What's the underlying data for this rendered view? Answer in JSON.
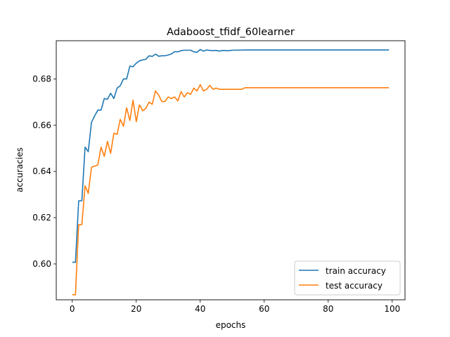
{
  "chart_data": {
    "type": "line",
    "title": "Adaboost_tfidf_60learner",
    "xlabel": "epochs",
    "ylabel": "accuracies",
    "xlim": [
      -5,
      104
    ],
    "ylim": [
      0.5845,
      0.6965
    ],
    "x_ticks": [
      0,
      20,
      40,
      60,
      80,
      100
    ],
    "y_ticks": [
      0.6,
      0.62,
      0.64,
      0.66,
      0.68
    ],
    "y_tick_labels": [
      "0.60",
      "0.62",
      "0.64",
      "0.66",
      "0.68"
    ],
    "grid": false,
    "legend_position": "lower-right",
    "series": [
      {
        "name": "train accuracy",
        "color": "#1f77b4",
        "x": [
          0,
          1,
          2,
          3,
          4,
          5,
          6,
          7,
          8,
          9,
          10,
          11,
          12,
          13,
          14,
          15,
          16,
          17,
          18,
          19,
          20,
          21,
          22,
          23,
          24,
          25,
          26,
          27,
          28,
          29,
          30,
          31,
          32,
          33,
          34,
          35,
          36,
          37,
          38,
          39,
          40,
          41,
          42,
          43,
          44,
          45,
          46,
          47,
          48,
          49,
          50,
          55,
          60,
          70,
          80,
          90,
          99
        ],
        "y": [
          0.6007,
          0.6007,
          0.6273,
          0.6273,
          0.6505,
          0.6485,
          0.6612,
          0.664,
          0.6665,
          0.6665,
          0.6715,
          0.6712,
          0.6738,
          0.6715,
          0.676,
          0.677,
          0.68,
          0.68,
          0.6855,
          0.6853,
          0.6868,
          0.6878,
          0.6882,
          0.6885,
          0.69,
          0.6897,
          0.6907,
          0.6898,
          0.69,
          0.69,
          0.6903,
          0.6908,
          0.6918,
          0.6917,
          0.6922,
          0.6924,
          0.6924,
          0.6924,
          0.6917,
          0.6915,
          0.6927,
          0.692,
          0.6925,
          0.6923,
          0.6922,
          0.6923,
          0.692,
          0.6923,
          0.6922,
          0.6922,
          0.6924,
          0.6925,
          0.6925,
          0.6925,
          0.6925,
          0.6925,
          0.6925
        ]
      },
      {
        "name": "test accuracy",
        "color": "#ff7f0e",
        "x": [
          0,
          1,
          2,
          3,
          4,
          5,
          6,
          7,
          8,
          9,
          10,
          11,
          12,
          13,
          14,
          15,
          16,
          17,
          18,
          19,
          20,
          21,
          22,
          23,
          24,
          25,
          26,
          27,
          28,
          29,
          30,
          31,
          32,
          33,
          34,
          35,
          36,
          37,
          38,
          39,
          40,
          41,
          42,
          43,
          44,
          45,
          46,
          47,
          48,
          50,
          53,
          54,
          60,
          70,
          80,
          90,
          99
        ],
        "y": [
          0.5867,
          0.5867,
          0.617,
          0.617,
          0.6338,
          0.6305,
          0.6418,
          0.6423,
          0.6428,
          0.6505,
          0.6465,
          0.653,
          0.6478,
          0.6565,
          0.656,
          0.6625,
          0.6595,
          0.6675,
          0.662,
          0.6708,
          0.6615,
          0.6688,
          0.6662,
          0.6672,
          0.67,
          0.669,
          0.6748,
          0.673,
          0.6702,
          0.6702,
          0.6722,
          0.6715,
          0.6722,
          0.6705,
          0.6745,
          0.6722,
          0.674,
          0.6733,
          0.676,
          0.6748,
          0.6775,
          0.6748,
          0.6755,
          0.6772,
          0.6755,
          0.676,
          0.6755,
          0.6755,
          0.6755,
          0.6755,
          0.6755,
          0.6762,
          0.6762,
          0.6762,
          0.6762,
          0.6762,
          0.6762
        ]
      }
    ]
  }
}
